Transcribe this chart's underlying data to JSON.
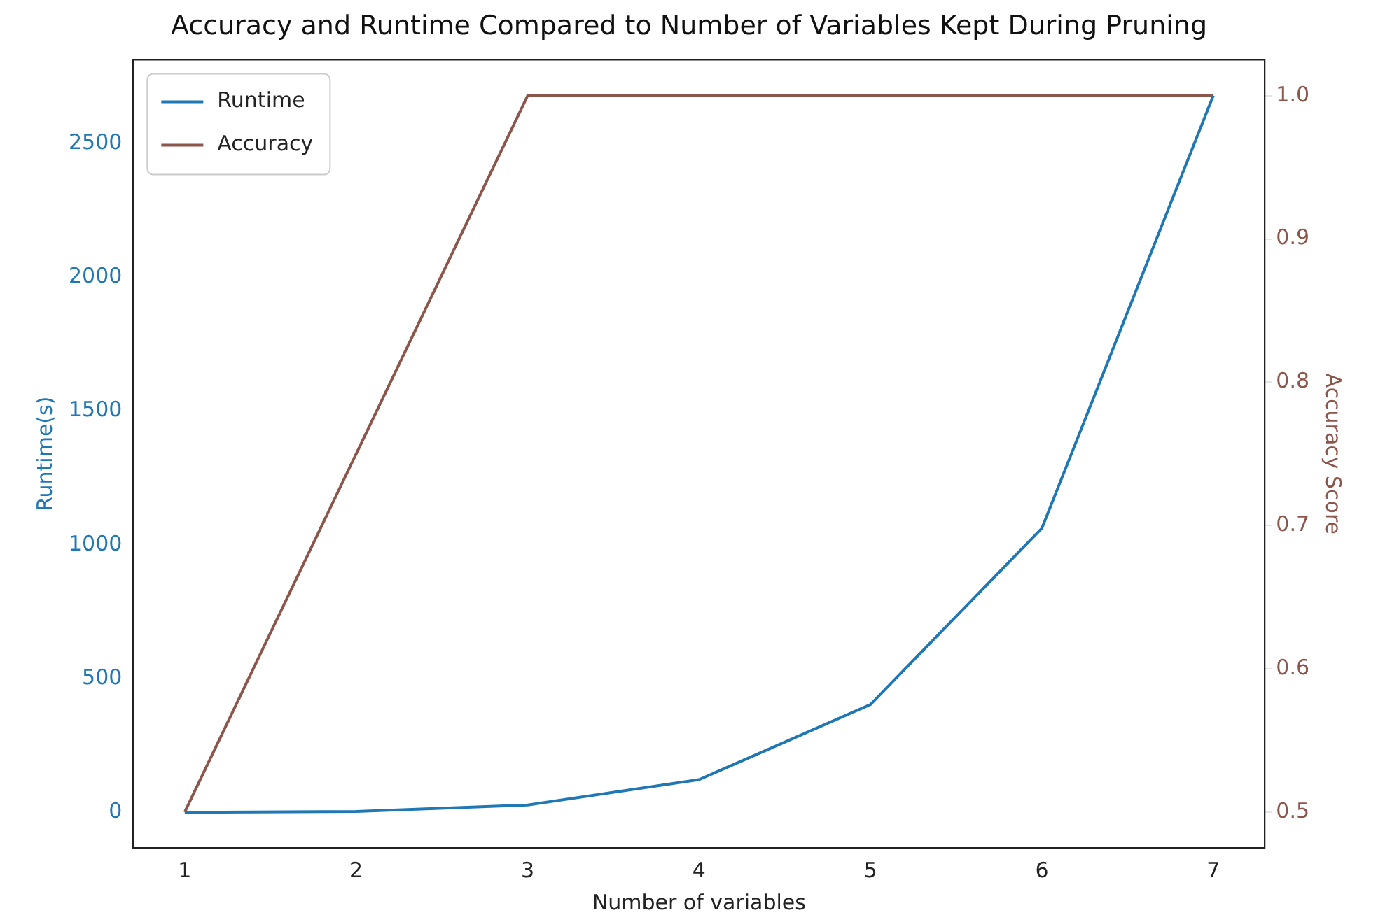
{
  "chart_data": {
    "type": "line",
    "title": "Accuracy and Runtime Compared to Number of Variables Kept During Pruning",
    "xlabel": "Number of variables",
    "ylabel": "Runtime(s)",
    "y2label": "Accuracy Score",
    "x": [
      1,
      2,
      3,
      4,
      5,
      6,
      7
    ],
    "series": [
      {
        "name": "Runtime",
        "color": "#1f77b4",
        "values": [
          0,
          3,
          27,
          122,
          403,
          1062,
          2680
        ]
      },
      {
        "name": "Accuracy",
        "color": "#8c564b",
        "axis": "y2",
        "values": [
          0.5,
          0.75,
          1.0,
          1.0,
          1.0,
          1.0,
          1.0
        ]
      }
    ],
    "xlim": [
      0.7,
      7.3
    ],
    "xticks": [
      1,
      2,
      3,
      4,
      5,
      6,
      7
    ],
    "ylim": [
      -133,
      2813
    ],
    "yticks": [
      0,
      500,
      1000,
      1500,
      2000,
      2500
    ],
    "y2lim": [
      0.475,
      1.025
    ],
    "y2ticks": [
      0.5,
      0.6,
      0.7,
      0.8,
      0.9,
      {
        "value": 1,
        "label": "1.0"
      }
    ],
    "grid": false,
    "legend": "top left",
    "marker": "none",
    "line_style": "solid"
  }
}
